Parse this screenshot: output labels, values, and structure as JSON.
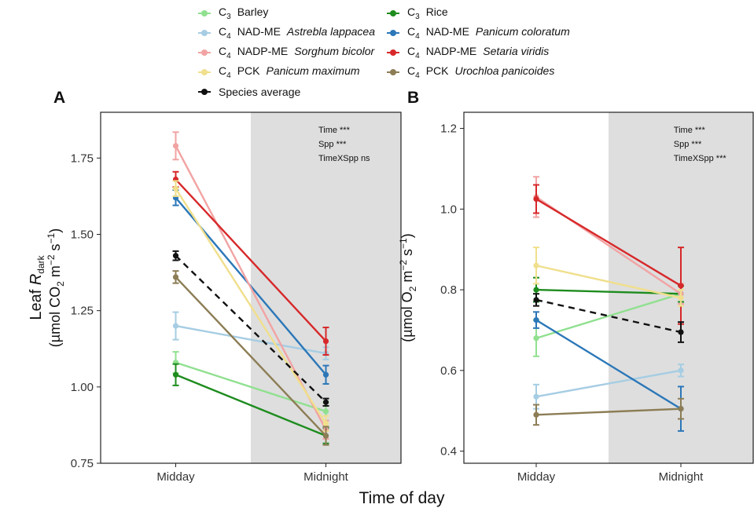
{
  "legend": {
    "items": [
      {
        "key": "barley",
        "prefix": "C",
        "sub": "3",
        "ptype": "",
        "species": "",
        "name": "Barley",
        "color": "#90e090",
        "dashed": false
      },
      {
        "key": "rice",
        "prefix": "C",
        "sub": "3",
        "ptype": "",
        "species": "",
        "name": "Rice",
        "color": "#1e8c1e",
        "dashed": false
      },
      {
        "key": "astrebla",
        "prefix": "C",
        "sub": "4",
        "ptype": "NAD-ME",
        "species": "Astrebla lappacea",
        "name": "",
        "color": "#a6cde3",
        "dashed": false
      },
      {
        "key": "panicum_col",
        "prefix": "C",
        "sub": "4",
        "ptype": "NAD-ME",
        "species": "Panicum coloratum",
        "name": "",
        "color": "#2b77b8",
        "dashed": false
      },
      {
        "key": "sorghum",
        "prefix": "C",
        "sub": "4",
        "ptype": "NADP-ME",
        "species": "Sorghum bicolor",
        "name": "",
        "color": "#f2a3a3",
        "dashed": false
      },
      {
        "key": "setaria",
        "prefix": "C",
        "sub": "4",
        "ptype": "NADP-ME",
        "species": "Setaria viridis",
        "name": "",
        "color": "#d7282a",
        "dashed": false
      },
      {
        "key": "panicum_max",
        "prefix": "C",
        "sub": "4",
        "ptype": "PCK",
        "species": "Panicum maximum",
        "name": "",
        "color": "#f0df8c",
        "dashed": false
      },
      {
        "key": "urochloa",
        "prefix": "C",
        "sub": "4",
        "ptype": "PCK",
        "species": "Urochloa panicoides",
        "name": "",
        "color": "#8c7d55",
        "dashed": false
      },
      {
        "key": "average",
        "prefix": "",
        "sub": "",
        "ptype": "",
        "species": "",
        "name": "Species average",
        "color": "#111111",
        "dashed": true
      }
    ]
  },
  "x_axis_title": "Time of day",
  "chart_data": [
    {
      "type": "line",
      "panel_label": "A",
      "categories": [
        "Midday",
        "Midnight"
      ],
      "ylim": [
        0.75,
        1.9
      ],
      "yticks": [
        0.75,
        1.0,
        1.25,
        1.5,
        1.75
      ],
      "ytick_labels": [
        "0.75",
        "1.00",
        "1.25",
        "1.50",
        "1.75"
      ],
      "ylabel_line1": "Leaf R",
      "ylabel_line1_sub": "dark",
      "ylabel_line2": "(µmol CO",
      "ylabel_line2_sub": "2",
      "ylabel_line2_rest": " m",
      "ylabel_line2_sup1": "−2",
      "ylabel_line2_rest2": " s",
      "ylabel_line2_sup2": "−1",
      "ylabel_line2_end": ")",
      "shaded_category": "Midnight",
      "stats": [
        "Time ***",
        "Spp ***",
        "TimeXSpp ns"
      ],
      "series": [
        {
          "key": "barley",
          "values": [
            1.08,
            0.92
          ],
          "err": [
            0.035,
            0.03
          ]
        },
        {
          "key": "rice",
          "values": [
            1.04,
            0.84
          ],
          "err": [
            0.035,
            0.025
          ]
        },
        {
          "key": "astrebla",
          "values": [
            1.2,
            1.11
          ],
          "err": [
            0.045,
            0.02
          ]
        },
        {
          "key": "panicum_col",
          "values": [
            1.62,
            1.04
          ],
          "err": [
            0.025,
            0.03
          ]
        },
        {
          "key": "sorghum",
          "values": [
            1.79,
            0.86
          ],
          "err": [
            0.045,
            0.03
          ]
        },
        {
          "key": "setaria",
          "values": [
            1.68,
            1.15
          ],
          "err": [
            0.025,
            0.045
          ]
        },
        {
          "key": "panicum_max",
          "values": [
            1.65,
            0.88
          ],
          "err": [
            0.025,
            0.025
          ]
        },
        {
          "key": "urochloa",
          "values": [
            1.36,
            0.84
          ],
          "err": [
            0.02,
            0.03
          ]
        },
        {
          "key": "average",
          "values": [
            1.43,
            0.95
          ],
          "err": [
            0.015,
            0.012
          ]
        }
      ]
    },
    {
      "type": "line",
      "panel_label": "B",
      "categories": [
        "Midday",
        "Midnight"
      ],
      "ylim": [
        0.37,
        1.24
      ],
      "yticks": [
        0.4,
        0.6,
        0.8,
        1.0,
        1.2
      ],
      "ytick_labels": [
        "0.4",
        "0.6",
        "0.8",
        "1.0",
        "1.2"
      ],
      "ylabel_line1": "",
      "ylabel_line1_sub": "",
      "ylabel_line2": "(µmol O",
      "ylabel_line2_sub": "2",
      "ylabel_line2_rest": " m",
      "ylabel_line2_sup1": "−2",
      "ylabel_line2_rest2": " s",
      "ylabel_line2_sup2": "−1",
      "ylabel_line2_end": ")",
      "shaded_category": "Midnight",
      "stats": [
        "Time ***",
        "Spp ***",
        "TimeXSpp ***"
      ],
      "series": [
        {
          "key": "barley",
          "values": [
            0.68,
            0.79
          ],
          "err": [
            0.045,
            0.02
          ]
        },
        {
          "key": "rice",
          "values": [
            0.8,
            0.79
          ],
          "err": [
            0.03,
            0.02
          ]
        },
        {
          "key": "astrebla",
          "values": [
            0.535,
            0.6
          ],
          "err": [
            0.03,
            0.015
          ]
        },
        {
          "key": "panicum_col",
          "values": [
            0.725,
            0.505
          ],
          "err": [
            0.02,
            0.055
          ]
        },
        {
          "key": "sorghum",
          "values": [
            1.03,
            0.79
          ],
          "err": [
            0.05,
            0.025
          ]
        },
        {
          "key": "setaria",
          "values": [
            1.025,
            0.81
          ],
          "err": [
            0.035,
            0.095
          ]
        },
        {
          "key": "panicum_max",
          "values": [
            0.86,
            0.78
          ],
          "err": [
            0.045,
            0.02
          ]
        },
        {
          "key": "urochloa",
          "values": [
            0.49,
            0.505
          ],
          "err": [
            0.025,
            0.025
          ]
        },
        {
          "key": "average",
          "values": [
            0.775,
            0.695
          ],
          "err": [
            0.015,
            0.025
          ]
        }
      ]
    }
  ]
}
